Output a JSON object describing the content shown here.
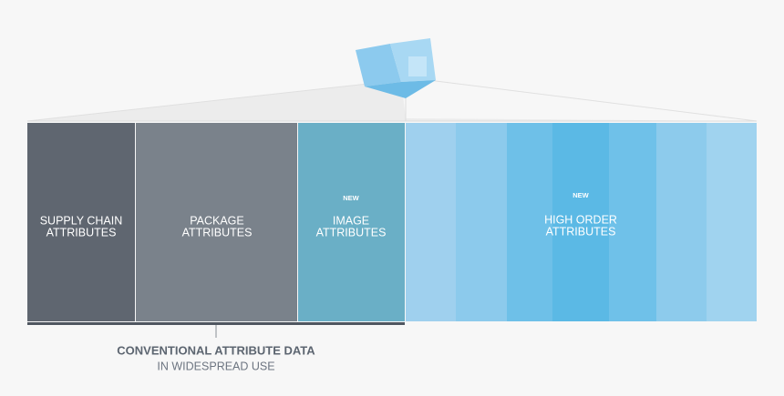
{
  "panels": [
    {
      "lines": [
        "SUPPLY CHAIN",
        "ATTRIBUTES"
      ]
    },
    {
      "lines": [
        "PACKAGE",
        "ATTRIBUTES"
      ]
    },
    {
      "badge": "NEW",
      "lines": [
        "IMAGE",
        "ATTRIBUTES"
      ]
    },
    {
      "badge": "NEW",
      "lines": [
        "HIGH ORDER",
        "ATTRIBUTES"
      ]
    }
  ],
  "caption": {
    "title": "CONVENTIONAL ATTRIBUTE DATA",
    "subtitle": "IN WIDESPREAD USE"
  }
}
